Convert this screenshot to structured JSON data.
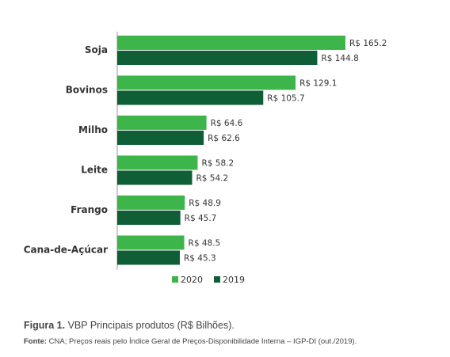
{
  "chart_data": {
    "type": "bar",
    "orientation": "horizontal",
    "categories": [
      "Soja",
      "Bovinos",
      "Milho",
      "Leite",
      "Frango",
      "Cana-de-Açúcar"
    ],
    "series": [
      {
        "name": "2020",
        "values": [
          165.2,
          129.1,
          64.6,
          58.2,
          48.9,
          48.5
        ],
        "labels": [
          "R$ 165.2",
          "R$ 129.1",
          "R$ 64.6",
          "R$ 58.2",
          "R$ 48.9",
          "R$ 48.5"
        ],
        "color": "#3db54a"
      },
      {
        "name": "2019",
        "values": [
          144.8,
          105.7,
          62.6,
          54.2,
          45.7,
          45.3
        ],
        "labels": [
          "R$ 144.8",
          "R$ 105.7",
          "R$ 62.6",
          "R$ 54.2",
          "R$ 45.7",
          "R$ 45.3"
        ],
        "color": "#0f5e36"
      }
    ],
    "xlim": [
      0,
      165.2
    ],
    "legend_placement": "bottom-center",
    "grid": false
  },
  "caption": {
    "figure_label": "Figura 1.",
    "figure_text": " VBP Principais produtos (R$ Bilhões).",
    "source_label": "Fonte:",
    "source_text": " CNA; Preços reais pelo Índice Geral de Preços-Disponibilidade Interna – IGP-DI (out./2019)."
  }
}
